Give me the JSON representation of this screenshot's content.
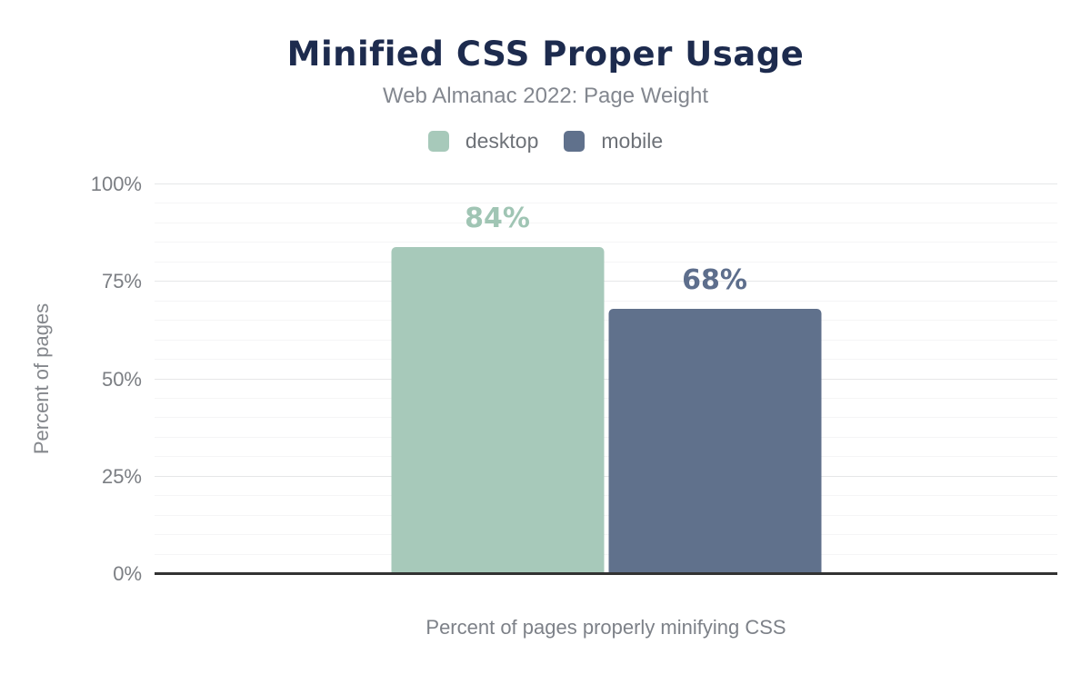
{
  "chart": {
    "title": "Minified CSS Proper Usage",
    "subtitle": "Web Almanac 2022: Page Weight",
    "x_axis_label": "Percent of pages properly minifying CSS",
    "y_axis_label": "Percent of pages",
    "y_tick_labels": [
      "0%",
      "25%",
      "50%",
      "75%",
      "100%"
    ]
  },
  "chart_data": {
    "type": "bar",
    "title": "Minified CSS Proper Usage",
    "subtitle": "Web Almanac 2022: Page Weight",
    "categories": [
      "desktop",
      "mobile"
    ],
    "series": [
      {
        "name": "desktop",
        "value": 84,
        "data_label": "84%",
        "color": "#a7c9ba",
        "label_color": "#a0c5b4"
      },
      {
        "name": "mobile",
        "value": 68,
        "data_label": "68%",
        "color": "#60718c",
        "label_color": "#5d6e8c"
      }
    ],
    "xlabel": "Percent of pages properly minifying CSS",
    "ylabel": "Percent of pages",
    "ylim": [
      0,
      100
    ],
    "y_tick_step": 25,
    "minor_grid_step": 5,
    "grid": true,
    "legend_position": "top-center"
  },
  "colors": {
    "background": "#ffffff",
    "title_text": "#1d2b4e",
    "subtitle_text": "#83878f",
    "axis_text": "#7d8188",
    "axis_line": "#323232",
    "major_gridline": "#e6e7e8",
    "minor_gridline": "#f5f5f6",
    "desktop_accent": "#a7c9ba",
    "mobile_accent": "#60718c"
  }
}
